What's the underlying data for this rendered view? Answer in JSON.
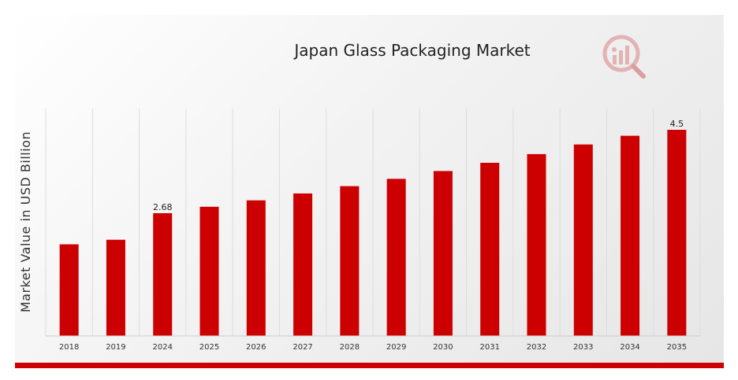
{
  "chart_data": {
    "type": "bar",
    "title": "Japan Glass Packaging Market",
    "xlabel": "",
    "ylabel": "Market Value in USD Billion",
    "categories": [
      "2018",
      "2019",
      "2024",
      "2025",
      "2026",
      "2027",
      "2028",
      "2029",
      "2030",
      "2031",
      "2032",
      "2033",
      "2034",
      "2035"
    ],
    "values": [
      2.0,
      2.1,
      2.68,
      2.82,
      2.96,
      3.11,
      3.27,
      3.43,
      3.6,
      3.78,
      3.97,
      4.18,
      4.37,
      4.5
    ],
    "data_labels": {
      "2024": "2.68",
      "2035": "4.5"
    },
    "ylim": [
      0,
      5.0
    ],
    "grid": "vertical",
    "bar_color": "#cc0000",
    "accent_color": "#cc0000"
  },
  "logo": {
    "icon": "analytics-magnifier-logo-icon"
  }
}
